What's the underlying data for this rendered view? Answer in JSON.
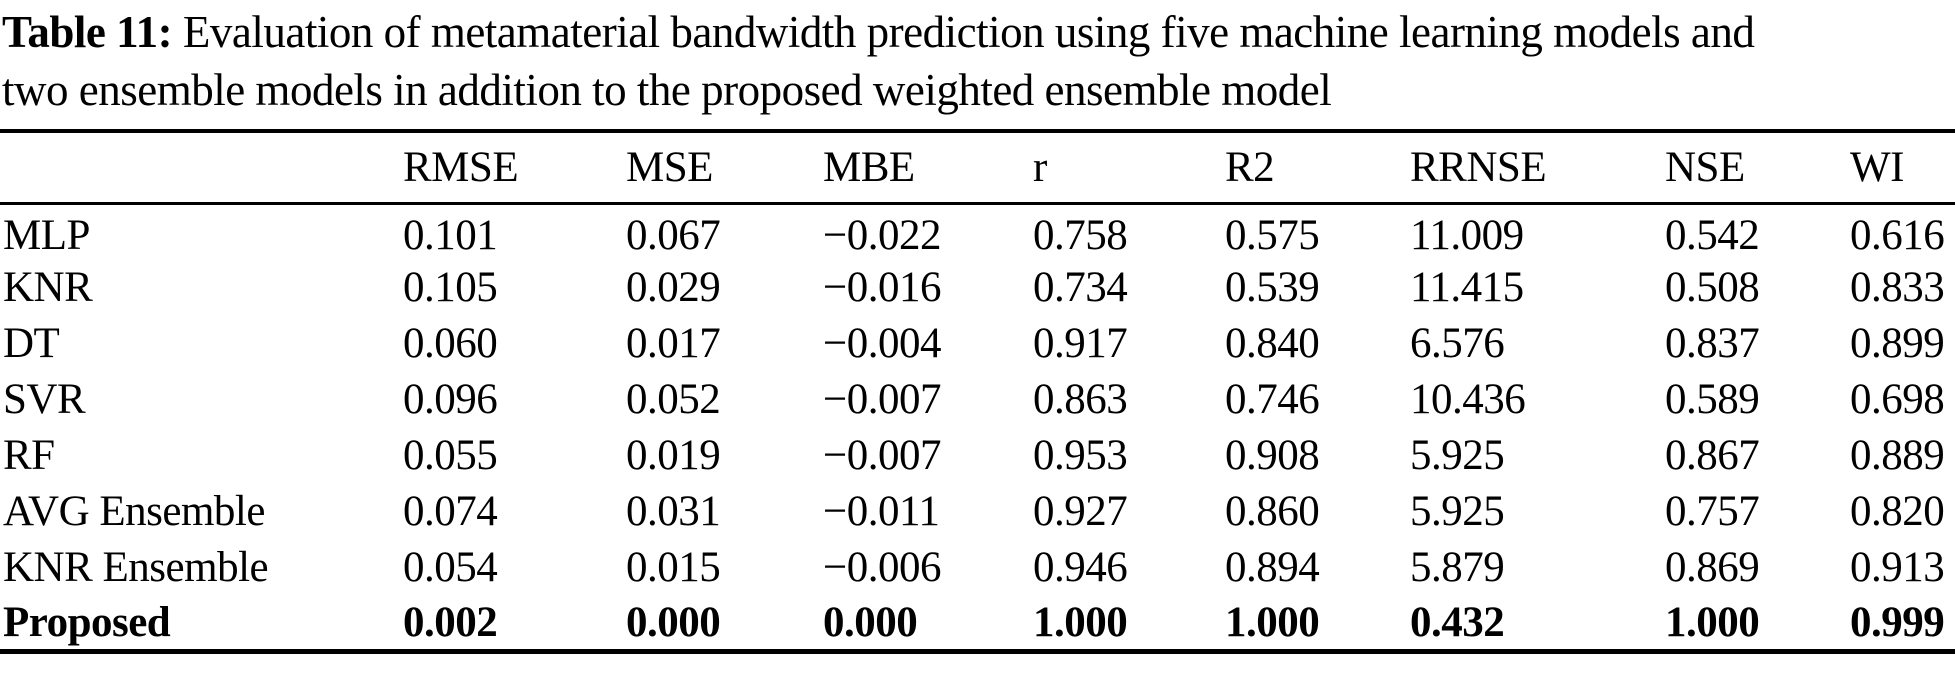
{
  "page": {
    "background": "#ffffff",
    "text_color": "#000000"
  },
  "caption": {
    "label": "Table 11:",
    "line1_rest": " Evaluation of metamaterial bandwidth prediction using five machine learning models and",
    "line2": "two ensemble models in addition to the proposed weighted ensemble model"
  },
  "table": {
    "columns": [
      "",
      "RMSE",
      "MSE",
      "MBE",
      "r",
      "R2",
      "RRNSE",
      "NSE",
      "WI"
    ],
    "rows": [
      {
        "model": "MLP",
        "bold": false,
        "values": [
          "0.101",
          "0.067",
          "−0.022",
          "0.758",
          "0.575",
          "11.009",
          "0.542",
          "0.616"
        ]
      },
      {
        "model": "KNR",
        "bold": false,
        "values": [
          "0.105",
          "0.029",
          "−0.016",
          "0.734",
          "0.539",
          "11.415",
          "0.508",
          "0.833"
        ]
      },
      {
        "model": "DT",
        "bold": false,
        "values": [
          "0.060",
          "0.017",
          "−0.004",
          "0.917",
          "0.840",
          "6.576",
          "0.837",
          "0.899"
        ]
      },
      {
        "model": "SVR",
        "bold": false,
        "values": [
          "0.096",
          "0.052",
          "−0.007",
          "0.863",
          "0.746",
          "10.436",
          "0.589",
          "0.698"
        ]
      },
      {
        "model": "RF",
        "bold": false,
        "values": [
          "0.055",
          "0.019",
          "−0.007",
          "0.953",
          "0.908",
          "5.925",
          "0.867",
          "0.889"
        ]
      },
      {
        "model": "AVG Ensemble",
        "bold": false,
        "values": [
          "0.074",
          "0.031",
          "−0.011",
          "0.927",
          "0.860",
          "5.925",
          "0.757",
          "0.820"
        ]
      },
      {
        "model": "KNR Ensemble",
        "bold": false,
        "values": [
          "0.054",
          "0.015",
          "−0.006",
          "0.946",
          "0.894",
          "5.879",
          "0.869",
          "0.913"
        ]
      },
      {
        "model": "Proposed",
        "bold": true,
        "values": [
          "0.002",
          "0.000",
          "0.000",
          "1.000",
          "1.000",
          "0.432",
          "1.000",
          "0.999"
        ]
      }
    ]
  }
}
